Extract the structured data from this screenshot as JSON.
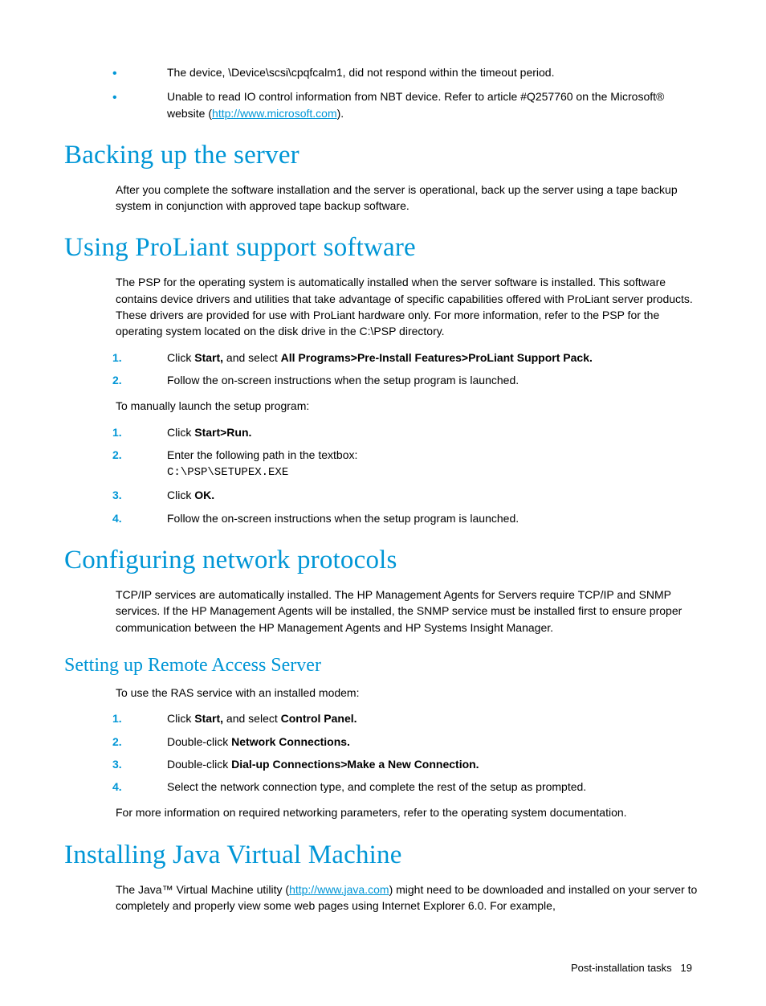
{
  "intro_bullets": [
    {
      "text": "The device, \\Device\\scsi\\cpqfcalm1, did not respond within the timeout period."
    },
    {
      "prefix": "Unable to read IO control information from NBT device. Refer to article #Q257760 on the Microsoft® website (",
      "link_text": "http://www.microsoft.com",
      "suffix": ")."
    }
  ],
  "sections": {
    "backing_up": {
      "title": "Backing up the server",
      "body": "After you complete the software installation and the server is operational, back up the server using a tape backup system in conjunction with approved tape backup software."
    },
    "proliant": {
      "title": "Using ProLiant support software",
      "body": "The PSP for the operating system is automatically installed when the server software is installed. This software contains device drivers and utilities that take advantage of specific capabilities offered with ProLiant server products. These drivers are provided for use with ProLiant hardware only. For more information, refer to the PSP for the operating system located on the disk drive in the C:\\PSP directory.",
      "list1": [
        {
          "pre": "Click ",
          "b1": "Start,",
          "mid": " and select ",
          "b2": "All Programs>Pre-Install Features>ProLiant Support Pack."
        },
        {
          "pre": "Follow the on-screen instructions when the setup program is launched."
        }
      ],
      "sub": "To manually launch the setup program:",
      "list2": [
        {
          "pre": "Click ",
          "b1": "Start>Run."
        },
        {
          "pre": "Enter the following path in the textbox:",
          "code": "C:\\PSP\\SETUPEX.EXE"
        },
        {
          "pre": "Click ",
          "b1": "OK."
        },
        {
          "pre": "Follow the on-screen instructions when the setup program is launched."
        }
      ]
    },
    "network": {
      "title": "Configuring network protocols",
      "body": "TCP/IP services are automatically installed. The HP Management Agents for Servers require TCP/IP and SNMP services. If the HP Management Agents will be installed, the SNMP service must be installed first to ensure proper communication between the HP Management Agents and HP Systems Insight Manager."
    },
    "ras": {
      "title": "Setting up Remote Access Server",
      "body": "To use the RAS service with an installed modem:",
      "list": [
        {
          "pre": "Click ",
          "b1": "Start,",
          "mid": " and select ",
          "b2": "Control Panel."
        },
        {
          "pre": "Double-click ",
          "b1": "Network Connections."
        },
        {
          "pre": "Double-click ",
          "b1": "Dial-up Connections>Make a New Connection."
        },
        {
          "pre": "Select the network connection type, and complete the rest of the setup as prompted."
        }
      ],
      "after": "For more information on required networking parameters, refer to the operating system documentation."
    },
    "java": {
      "title": "Installing Java Virtual Machine",
      "body_pre": "The Java™ Virtual Machine utility (",
      "link": "http://www.java.com",
      "body_post": ") might need to be downloaded and installed on your server to completely and properly view some web pages using Internet Explorer 6.0. For example,"
    }
  },
  "footer": {
    "label": "Post-installation tasks",
    "page": "19"
  }
}
